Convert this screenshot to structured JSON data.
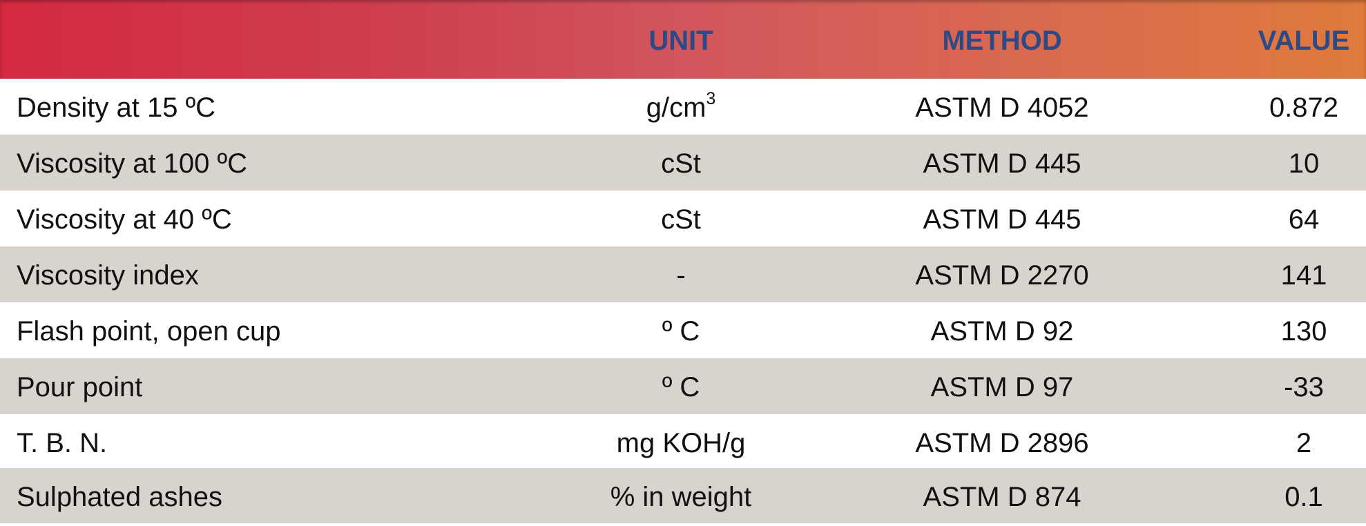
{
  "header": {
    "name": "",
    "unit": "UNIT",
    "method": "METHOD",
    "value": "VALUE"
  },
  "colors": {
    "header_gradient_start": "#d42a40",
    "header_gradient_end": "#e07a3c",
    "header_text": "#2d4a85",
    "row_alt": "#d8d3cd"
  },
  "rows": [
    {
      "name": "Density at 15 ºC",
      "unit": "g/cm",
      "unit_sup": "3",
      "method": "ASTM D 4052",
      "value": "0.872"
    },
    {
      "name": "Viscosity at 100 ºC",
      "unit": "cSt",
      "unit_sup": "",
      "method": "ASTM D 445",
      "value": "10"
    },
    {
      "name": "Viscosity at 40 ºC",
      "unit": "cSt",
      "unit_sup": "",
      "method": "ASTM D 445",
      "value": "64"
    },
    {
      "name": "Viscosity index",
      "unit": "-",
      "unit_sup": "",
      "method": "ASTM D 2270",
      "value": "141"
    },
    {
      "name": "Flash point, open cup",
      "unit": "º C",
      "unit_sup": "",
      "method": "ASTM D 92",
      "value": "130"
    },
    {
      "name": "Pour point",
      "unit": "º C",
      "unit_sup": "",
      "method": "ASTM D 97",
      "value": "-33"
    },
    {
      "name": "T. B. N.",
      "unit": "mg KOH/g",
      "unit_sup": "",
      "method": "ASTM D 2896",
      "value": "2"
    },
    {
      "name": "Sulphated ashes",
      "unit": "% in weight",
      "unit_sup": "",
      "method": "ASTM D 874",
      "value": "0.1"
    }
  ]
}
